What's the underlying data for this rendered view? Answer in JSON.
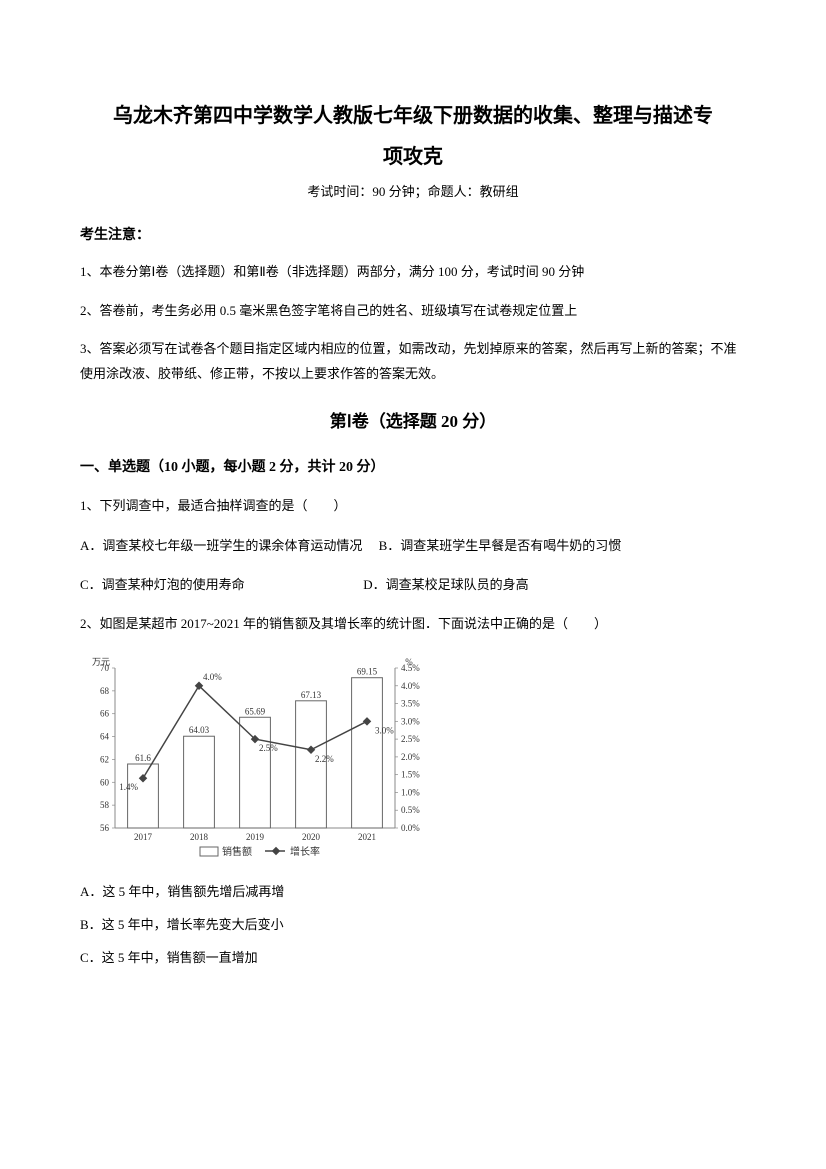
{
  "title_line1": "乌龙木齐第四中学数学人教版七年级下册数据的收集、整理与描述专",
  "title_line2": "项攻克",
  "exam_info": "考试时间：90 分钟；命题人：教研组",
  "notice_title": "考生注意：",
  "notice1": "1、本卷分第Ⅰ卷（选择题）和第Ⅱ卷（非选择题）两部分，满分 100 分，考试时间 90 分钟",
  "notice2": "2、答卷前，考生务必用 0.5 毫米黑色签字笔将自己的姓名、班级填写在试卷规定位置上",
  "notice3": "3、答案必须写在试卷各个题目指定区域内相应的位置，如需改动，先划掉原来的答案，然后再写上新的答案；不准使用涂改液、胶带纸、修正带，不按以上要求作答的答案无效。",
  "section1": "第Ⅰ卷（选择题  20 分）",
  "group1": "一、单选题（10 小题，每小题 2 分，共计 20 分）",
  "q1": "1、下列调查中，最适合抽样调查的是（　　）",
  "q1a": "A．调查某校七年级一班学生的课余体育运动情况",
  "q1b": "B．调查某班学生早餐是否有喝牛奶的习惯",
  "q1c": "C．调查某种灯泡的使用寿命",
  "q1d": "D．调查某校足球队员的身高",
  "q2": "2、如图是某超市 2017~2021 年的销售额及其增长率的统计图．下面说法中正确的是（　　）",
  "q2a": "A．这 5 年中，销售额先增后减再增",
  "q2b": "B．这 5 年中，增长率先变大后变小",
  "q2c": "C．这 5 年中，销售额一直增加",
  "chart": {
    "type": "combo-bar-line",
    "y1_label": "万元",
    "y2_label": "%",
    "y1_min": 56,
    "y1_max": 70,
    "y1_step": 2,
    "y2_min": 0.0,
    "y2_max": 4.5,
    "y2_step": 0.5,
    "categories": [
      "2017",
      "2018",
      "2019",
      "2020",
      "2021"
    ],
    "bar_values": [
      61.6,
      64.03,
      65.69,
      67.13,
      69.15
    ],
    "bar_labels": [
      "61.6",
      "64.03",
      "65.69",
      "67.13",
      "69.15"
    ],
    "line_values": [
      1.4,
      4.0,
      2.5,
      2.2,
      3.0
    ],
    "line_labels": [
      "1.4%",
      "4.0%",
      "2.5%",
      "2.2%",
      "3.0%"
    ],
    "bar_color": "#ffffff",
    "bar_border": "#666666",
    "line_color": "#444444",
    "marker_color": "#444444",
    "axis_color": "#888888",
    "text_color": "#333333",
    "legend_bar": "销售额",
    "legend_line": "增长率",
    "font_size": 9
  }
}
